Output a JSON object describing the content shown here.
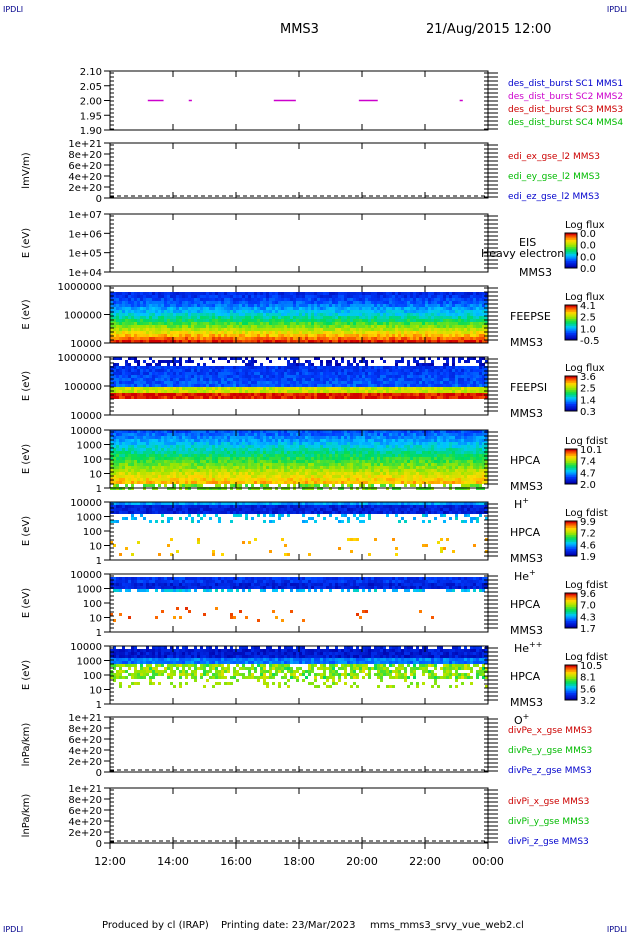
{
  "header": {
    "corner_left": "IPDLI",
    "corner_right": "IPDLI",
    "spacecraft": "MMS3",
    "datetime": "21/Aug/2015 12:00"
  },
  "footer": {
    "produced_by": "Produced by cl (IRAP)",
    "printing_date": "Printing date: 23/Mar/2023",
    "script_name": "mms_mms3_srvy_vue_web2.cl",
    "corner_left": "IPDLI",
    "corner_right": "IPDLI"
  },
  "time_axis": {
    "tick_labels": [
      "12:00",
      "14:00",
      "16:00",
      "18:00",
      "20:00",
      "22:00",
      "00:00"
    ],
    "range_hours": [
      12,
      24
    ]
  },
  "colors": {
    "blue": "#0000cc",
    "magenta": "#cc00cc",
    "red": "#cc0000",
    "green": "#00bb00"
  },
  "chart_data": [
    {
      "type": "line",
      "panel": "burst",
      "yticks": [
        "2.10",
        "2.05",
        "2.00",
        "1.95",
        "1.90"
      ],
      "ylim": [
        1.9,
        2.1
      ],
      "legend": [
        {
          "text": "des_dist_burst SC1 MMS1",
          "color": "blue"
        },
        {
          "text": "des_dist_burst SC2 MMS2",
          "color": "magenta"
        },
        {
          "text": "des_dist_burst SC3 MMS3",
          "color": "red"
        },
        {
          "text": "des_dist_burst SC4 MMS4",
          "color": "green"
        }
      ],
      "segments": [
        {
          "x": [
            13.2,
            13.7
          ],
          "y": 2.0
        },
        {
          "x": [
            14.5,
            14.6
          ],
          "y": 2.0
        },
        {
          "x": [
            17.2,
            17.9
          ],
          "y": 2.0
        },
        {
          "x": [
            19.9,
            20.5
          ],
          "y": 2.0
        },
        {
          "x": [
            23.1,
            23.2
          ],
          "y": 2.0
        }
      ]
    },
    {
      "type": "line",
      "panel": "edi",
      "ylabel": "lmV/m)",
      "yticks": [
        "1e+21",
        "8e+20",
        "6e+20",
        "4e+20",
        "2e+20",
        "0"
      ],
      "legend": [
        {
          "text": "edi_ex_gse_l2 MMS3",
          "color": "red"
        },
        {
          "text": "edi_ey_gse_l2 MMS3",
          "color": "green"
        },
        {
          "text": "edi_ez_gse_l2 MMS3",
          "color": "blue"
        }
      ]
    },
    {
      "type": "heatmap",
      "panel": "eis",
      "ylabel": "E (eV)",
      "yticks": [
        "1e+07",
        "1e+06",
        "1e+05",
        "1e+04"
      ],
      "right_labels": [
        "EIS",
        "MMS3"
      ],
      "overlay_text": "Heavy electron to",
      "colorbar_title": "Log flux",
      "colorbar_ticks": [
        "0.0",
        "0.0",
        "0.0",
        "0.0"
      ]
    },
    {
      "type": "heatmap",
      "panel": "feepse",
      "ylabel": "E (eV)",
      "yticks": [
        "1000000",
        "100000",
        "10000"
      ],
      "right_labels": [
        "FEEPSE",
        "MMS3"
      ],
      "colorbar_title": "Log flux",
      "colorbar_ticks": [
        "4.1",
        "2.5",
        "1.0",
        "-0.5"
      ]
    },
    {
      "type": "heatmap",
      "panel": "feepsi",
      "ylabel": "E (eV)",
      "yticks": [
        "1000000",
        "100000",
        "10000"
      ],
      "right_labels": [
        "FEEPSI",
        "MMS3"
      ],
      "colorbar_title": "Log flux",
      "colorbar_ticks": [
        "3.6",
        "2.5",
        "1.4",
        "0.3"
      ]
    },
    {
      "type": "heatmap",
      "panel": "hpca_h",
      "ylabel": "E (eV)",
      "yticks": [
        "10000",
        "1000",
        "100",
        "10",
        "1"
      ],
      "right_labels": [
        "HPCA",
        "MMS3",
        "H+"
      ],
      "colorbar_title": "Log fdist",
      "colorbar_ticks": [
        "10.1",
        "7.4",
        "4.7",
        "2.0"
      ]
    },
    {
      "type": "heatmap",
      "panel": "hpca_he",
      "ylabel": "E (eV)",
      "yticks": [
        "10000",
        "1000",
        "100",
        "10",
        "1"
      ],
      "right_labels": [
        "HPCA",
        "MMS3",
        "He+"
      ],
      "colorbar_title": "Log fdist",
      "colorbar_ticks": [
        "9.9",
        "7.2",
        "4.6",
        "1.9"
      ]
    },
    {
      "type": "heatmap",
      "panel": "hpca_hepp",
      "ylabel": "E (eV)",
      "yticks": [
        "10000",
        "1000",
        "100",
        "10",
        "1"
      ],
      "right_labels": [
        "HPCA",
        "MMS3",
        "He++"
      ],
      "colorbar_title": "Log fdist",
      "colorbar_ticks": [
        "9.6",
        "7.0",
        "4.3",
        "1.7"
      ]
    },
    {
      "type": "heatmap",
      "panel": "hpca_o",
      "ylabel": "E (eV)",
      "yticks": [
        "10000",
        "1000",
        "100",
        "10",
        "1"
      ],
      "right_labels": [
        "HPCA",
        "MMS3",
        "O+"
      ],
      "colorbar_title": "Log fdist",
      "colorbar_ticks": [
        "10.5",
        "8.1",
        "5.6",
        "3.2"
      ]
    },
    {
      "type": "line",
      "panel": "divpe",
      "ylabel": "lnPa/km)",
      "yticks": [
        "1e+21",
        "8e+20",
        "6e+20",
        "4e+20",
        "2e+20",
        "0"
      ],
      "legend": [
        {
          "text": "divPe_x_gse MMS3",
          "color": "red"
        },
        {
          "text": "divPe_y_gse MMS3",
          "color": "green"
        },
        {
          "text": "divPe_z_gse MMS3",
          "color": "blue"
        }
      ]
    },
    {
      "type": "line",
      "panel": "divpi",
      "ylabel": "lnPa/km)",
      "yticks": [
        "1e+21",
        "8e+20",
        "6e+20",
        "4e+20",
        "2e+20",
        "0"
      ],
      "legend": [
        {
          "text": "divPi_x_gse MMS3",
          "color": "red"
        },
        {
          "text": "divPi_y_gse MMS3",
          "color": "green"
        },
        {
          "text": "divPi_z_gse MMS3",
          "color": "blue"
        }
      ]
    }
  ]
}
